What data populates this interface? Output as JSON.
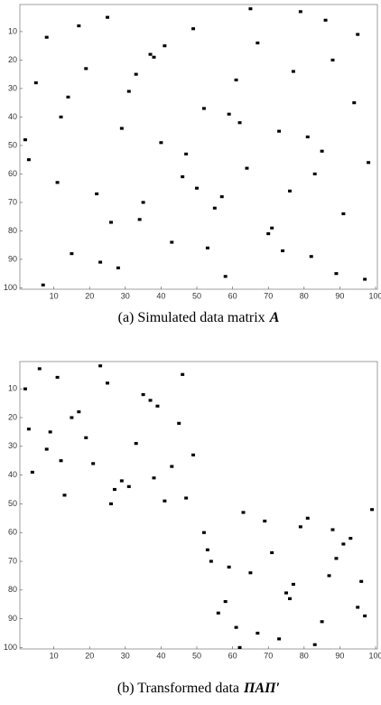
{
  "chart_data": [
    {
      "type": "scatter",
      "marker": "square",
      "color": "#000000",
      "caption": "(a) Simulated data matrix",
      "caption_symbol": "A",
      "x": [
        3,
        8,
        12,
        15,
        19,
        22,
        25,
        28,
        31,
        34,
        37,
        40,
        43,
        46,
        49,
        52,
        55,
        58,
        61,
        64,
        67,
        70,
        73,
        76,
        79,
        82,
        85,
        88,
        91,
        94,
        97,
        5,
        11,
        17,
        23,
        29,
        35,
        41,
        47,
        53,
        59,
        65,
        71,
        77,
        83,
        89,
        95,
        2,
        14,
        26,
        38,
        50,
        62,
        74,
        86,
        98,
        7,
        33,
        57,
        81
      ],
      "y": [
        55,
        12,
        40,
        88,
        23,
        67,
        5,
        93,
        31,
        76,
        18,
        49,
        84,
        61,
        9,
        37,
        72,
        96,
        27,
        58,
        14,
        81,
        45,
        66,
        3,
        89,
        52,
        20,
        74,
        35,
        97,
        28,
        63,
        8,
        91,
        44,
        70,
        15,
        53,
        86,
        39,
        2,
        79,
        24,
        60,
        95,
        11,
        48,
        33,
        77,
        19,
        65,
        42,
        87,
        6,
        56,
        99,
        25,
        68,
        47
      ],
      "xlim": [
        0.5,
        100.5
      ],
      "ylim": [
        0.5,
        100.5
      ],
      "y_reversed": true,
      "xticks": [
        10,
        20,
        30,
        40,
        50,
        60,
        70,
        80,
        90,
        100
      ],
      "yticks": [
        10,
        20,
        30,
        40,
        50,
        60,
        70,
        80,
        90,
        100
      ]
    },
    {
      "type": "scatter",
      "marker": "square",
      "color": "#000000",
      "caption": "(b) Transformed data",
      "caption_symbol": "ΠAΠ′",
      "x": [
        2,
        6,
        9,
        13,
        17,
        21,
        25,
        29,
        33,
        37,
        41,
        45,
        49,
        4,
        11,
        19,
        27,
        35,
        43,
        8,
        15,
        23,
        31,
        39,
        47,
        3,
        12,
        26,
        38,
        46,
        52,
        56,
        59,
        63,
        67,
        71,
        75,
        79,
        83,
        87,
        91,
        95,
        99,
        54,
        61,
        69,
        77,
        85,
        93,
        58,
        65,
        73,
        81,
        89,
        97,
        53,
        62,
        76,
        88,
        96
      ],
      "y": [
        10,
        3,
        25,
        47,
        18,
        36,
        8,
        42,
        29,
        14,
        49,
        22,
        33,
        39,
        6,
        27,
        45,
        12,
        37,
        31,
        20,
        2,
        44,
        16,
        48,
        24,
        35,
        50,
        41,
        5,
        60,
        88,
        72,
        53,
        95,
        67,
        81,
        58,
        99,
        75,
        64,
        86,
        52,
        70,
        93,
        56,
        78,
        91,
        62,
        84,
        74,
        97,
        55,
        69,
        89,
        66,
        100,
        83,
        59,
        77
      ],
      "xlim": [
        0.5,
        100.5
      ],
      "ylim": [
        0.5,
        100.5
      ],
      "y_reversed": true,
      "xticks": [
        10,
        20,
        30,
        40,
        50,
        60,
        70,
        80,
        90,
        100
      ],
      "yticks": [
        10,
        20,
        30,
        40,
        50,
        60,
        70,
        80,
        90,
        100
      ]
    }
  ]
}
